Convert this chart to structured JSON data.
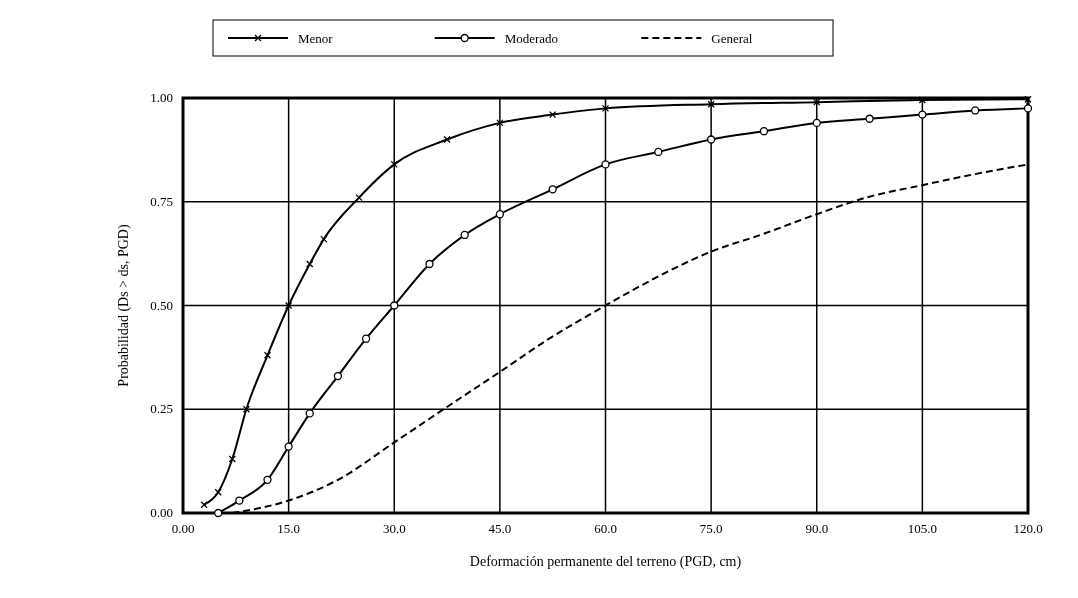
{
  "chart_data": {
    "type": "line",
    "xlabel": "Deformación permanente del terreno (PGD, cm)",
    "ylabel": "Probabilidad (Ds > ds, PGD)",
    "xlim": [
      0,
      120
    ],
    "ylim": [
      0,
      1
    ],
    "xticks": [
      {
        "value": 0,
        "label": "0.00"
      },
      {
        "value": 15,
        "label": "15.0"
      },
      {
        "value": 30,
        "label": "30.0"
      },
      {
        "value": 45,
        "label": "45.0"
      },
      {
        "value": 60,
        "label": "60.0"
      },
      {
        "value": 75,
        "label": "75.0"
      },
      {
        "value": 90,
        "label": "90.0"
      },
      {
        "value": 105,
        "label": "105.0"
      },
      {
        "value": 120,
        "label": "120.0"
      }
    ],
    "yticks": [
      {
        "value": 0,
        "label": "0.00"
      },
      {
        "value": 0.25,
        "label": "0.25"
      },
      {
        "value": 0.5,
        "label": "0.50"
      },
      {
        "value": 0.75,
        "label": "0.75"
      },
      {
        "value": 1,
        "label": "1.00"
      }
    ],
    "grid": true,
    "legend": "top",
    "series": [
      {
        "name": "Menor",
        "color": "#000000",
        "marker": "cross",
        "line_style": "solid",
        "x": [
          3,
          5,
          7,
          9,
          12,
          15,
          18,
          20,
          25,
          30,
          37.5,
          45,
          52.5,
          60,
          75,
          90,
          105,
          120
        ],
        "values": [
          0.02,
          0.05,
          0.13,
          0.25,
          0.38,
          0.5,
          0.6,
          0.66,
          0.76,
          0.84,
          0.9,
          0.94,
          0.96,
          0.975,
          0.985,
          0.99,
          0.995,
          0.997
        ]
      },
      {
        "name": "Moderado",
        "color": "#000000",
        "marker": "circle",
        "line_style": "solid",
        "x": [
          5,
          8,
          12,
          15,
          18,
          22,
          26,
          30,
          35,
          40,
          45,
          52.5,
          60,
          67.5,
          75,
          82.5,
          90,
          97.5,
          105,
          112.5,
          120
        ],
        "values": [
          0,
          0.03,
          0.08,
          0.16,
          0.24,
          0.33,
          0.42,
          0.5,
          0.6,
          0.67,
          0.72,
          0.78,
          0.84,
          0.87,
          0.9,
          0.92,
          0.94,
          0.95,
          0.96,
          0.97,
          0.975
        ]
      },
      {
        "name": "General",
        "color": "#000000",
        "marker": "none",
        "line_style": "dashed",
        "x": [
          7,
          15,
          22,
          30,
          37,
          45,
          52,
          60,
          67.5,
          75,
          82,
          90,
          97,
          105,
          112,
          120
        ],
        "values": [
          0,
          0.03,
          0.08,
          0.17,
          0.25,
          0.34,
          0.42,
          0.5,
          0.57,
          0.63,
          0.67,
          0.72,
          0.76,
          0.79,
          0.815,
          0.84
        ]
      }
    ]
  }
}
